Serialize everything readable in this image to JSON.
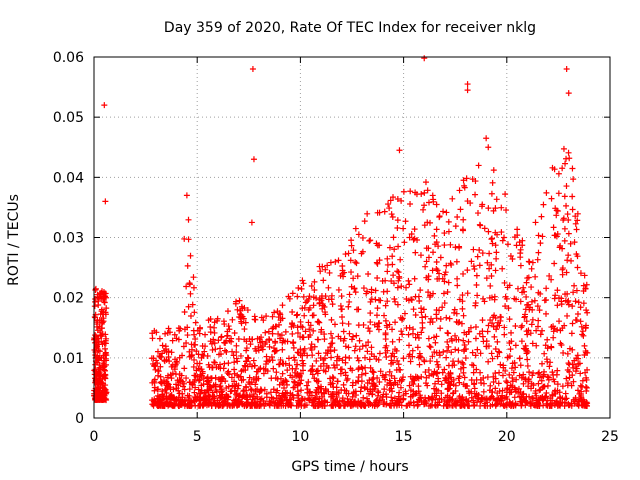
{
  "chart_data": {
    "type": "scatter",
    "title": "Day 359 of 2020, Rate Of TEC Index for receiver nklg",
    "xlabel": "GPS time / hours",
    "ylabel": "ROTI / TECUs",
    "xlim": [
      0,
      25
    ],
    "ylim": [
      0,
      0.06
    ],
    "xticks": [
      0,
      5,
      10,
      15,
      20,
      25
    ],
    "yticks": [
      0,
      0.01,
      0.02,
      0.03,
      0.04,
      0.05,
      0.06
    ],
    "xtick_labels": [
      "0",
      "5",
      "10",
      "15",
      "20",
      "25"
    ],
    "ytick_labels": [
      "0",
      "0.01",
      "0.02",
      "0.03",
      "0.04",
      "0.05",
      "0.06"
    ],
    "grid": true,
    "marker": "+",
    "color": "#ff0000",
    "point_density_note": "dense scatter; envelope sampled below",
    "envelope": [
      {
        "x": 0.0,
        "low": 0.003,
        "high": 0.022
      },
      {
        "x": 0.5,
        "low": 0.003,
        "high": 0.021
      },
      {
        "x": 2.8,
        "low": 0.002,
        "high": 0.015
      },
      {
        "x": 3.5,
        "low": 0.002,
        "high": 0.014
      },
      {
        "x": 4.0,
        "low": 0.002,
        "high": 0.018
      },
      {
        "x": 4.5,
        "low": 0.002,
        "high": 0.037
      },
      {
        "x": 5.0,
        "low": 0.002,
        "high": 0.016
      },
      {
        "x": 6.0,
        "low": 0.002,
        "high": 0.017
      },
      {
        "x": 7.0,
        "low": 0.002,
        "high": 0.02
      },
      {
        "x": 8.0,
        "low": 0.002,
        "high": 0.017
      },
      {
        "x": 9.0,
        "low": 0.002,
        "high": 0.019
      },
      {
        "x": 10.0,
        "low": 0.002,
        "high": 0.025
      },
      {
        "x": 11.0,
        "low": 0.002,
        "high": 0.026
      },
      {
        "x": 12.0,
        "low": 0.002,
        "high": 0.027
      },
      {
        "x": 13.0,
        "low": 0.002,
        "high": 0.034
      },
      {
        "x": 14.0,
        "low": 0.002,
        "high": 0.036
      },
      {
        "x": 15.0,
        "low": 0.002,
        "high": 0.038
      },
      {
        "x": 16.0,
        "low": 0.002,
        "high": 0.04
      },
      {
        "x": 17.0,
        "low": 0.002,
        "high": 0.034
      },
      {
        "x": 18.0,
        "low": 0.002,
        "high": 0.041
      },
      {
        "x": 19.0,
        "low": 0.002,
        "high": 0.046
      },
      {
        "x": 20.0,
        "low": 0.002,
        "high": 0.037
      },
      {
        "x": 21.0,
        "low": 0.002,
        "high": 0.028
      },
      {
        "x": 22.0,
        "low": 0.002,
        "high": 0.04
      },
      {
        "x": 23.0,
        "low": 0.002,
        "high": 0.048
      },
      {
        "x": 23.8,
        "low": 0.002,
        "high": 0.023
      }
    ],
    "outliers": [
      {
        "x": 0.5,
        "y": 0.052
      },
      {
        "x": 0.55,
        "y": 0.036
      },
      {
        "x": 7.7,
        "y": 0.058
      },
      {
        "x": 7.75,
        "y": 0.043
      },
      {
        "x": 7.65,
        "y": 0.0325
      },
      {
        "x": 16.0,
        "y": 0.0598
      },
      {
        "x": 18.1,
        "y": 0.0545
      },
      {
        "x": 18.1,
        "y": 0.0555
      },
      {
        "x": 22.9,
        "y": 0.058
      },
      {
        "x": 23.0,
        "y": 0.054
      },
      {
        "x": 14.8,
        "y": 0.0445
      },
      {
        "x": 19.0,
        "y": 0.0465
      },
      {
        "x": 4.5,
        "y": 0.037
      }
    ]
  }
}
